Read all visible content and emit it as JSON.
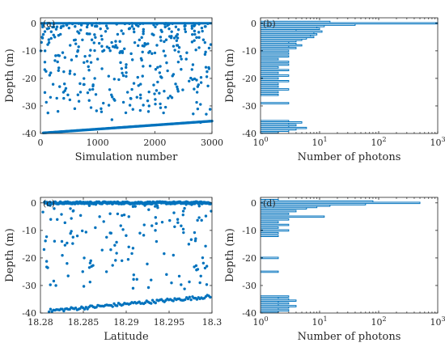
{
  "colors": {
    "series": "#0072BD",
    "axis": "#262626",
    "background": "#ffffff"
  },
  "chart_data": [
    {
      "id": "a",
      "panel_label": "(a)",
      "type": "scatter",
      "xlabel": "Simulation number",
      "ylabel": "Depth (m)",
      "xlim": [
        0,
        3000
      ],
      "ylim": [
        -40,
        2
      ],
      "xticks": [
        0,
        1000,
        2000,
        3000
      ],
      "xtick_labels": [
        "0",
        "1000",
        "2000",
        "3000"
      ],
      "yticks": [
        0,
        -10,
        -20,
        -30,
        -40
      ],
      "ytick_labels": [
        "0",
        "-10",
        "-20",
        "-30",
        "-40"
      ],
      "surface_band": {
        "y": 0,
        "x_start": 0,
        "x_end": 3000
      },
      "bottom_trend": {
        "x_start": 50,
        "y_start": -39.8,
        "x_end": 3000,
        "y_end": -35.5,
        "n_points": 150
      },
      "points": [
        [
          120,
          -2
        ],
        [
          250,
          -5
        ],
        [
          400,
          -1
        ],
        [
          520,
          -8
        ],
        [
          650,
          -3
        ],
        [
          780,
          -12
        ],
        [
          900,
          -6
        ],
        [
          1050,
          -2
        ],
        [
          1200,
          -9
        ],
        [
          1350,
          -4
        ],
        [
          1500,
          -15
        ],
        [
          1650,
          -7
        ],
        [
          1800,
          -3
        ],
        [
          1950,
          -11
        ],
        [
          2100,
          -5
        ],
        [
          2250,
          -2
        ],
        [
          2400,
          -8
        ],
        [
          2550,
          -13
        ],
        [
          2700,
          -4
        ],
        [
          2850,
          -6
        ],
        [
          180,
          -18
        ],
        [
          420,
          -22
        ],
        [
          700,
          -25
        ],
        [
          950,
          -20
        ],
        [
          1300,
          -28
        ],
        [
          1600,
          -24
        ],
        [
          1900,
          -30
        ],
        [
          2300,
          -27
        ],
        [
          2600,
          -21
        ],
        [
          2900,
          -33
        ],
        [
          300,
          -14
        ],
        [
          850,
          -17
        ],
        [
          1450,
          -19
        ],
        [
          2050,
          -16
        ],
        [
          2750,
          -23
        ],
        [
          600,
          -31
        ],
        [
          1100,
          -29
        ],
        [
          1750,
          -26
        ],
        [
          2450,
          -12
        ],
        [
          2950,
          -9
        ],
        [
          80,
          -10
        ],
        [
          350,
          -4
        ],
        [
          1000,
          -13
        ],
        [
          1550,
          -2
        ],
        [
          2200,
          -6
        ],
        [
          2650,
          -1
        ],
        [
          480,
          -26
        ],
        [
          1250,
          -35
        ],
        [
          2800,
          -36
        ],
        [
          150,
          -7
        ]
      ]
    },
    {
      "id": "b",
      "panel_label": "(b)",
      "type": "histogram",
      "orientation": "horizontal",
      "xlabel": "Number of photons",
      "ylabel": "Depth (m)",
      "x_scale": "log",
      "xlim": [
        1,
        1000
      ],
      "ylim": [
        -40,
        2
      ],
      "xticks": [
        1,
        10,
        100,
        1000
      ],
      "xtick_labels": [
        "10^0",
        "10^1",
        "10^2",
        "10^3"
      ],
      "yticks": [
        0,
        -10,
        -20,
        -30,
        -40
      ],
      "ytick_labels": [
        "0",
        "-10",
        "-20",
        "-30",
        "-40"
      ],
      "depths": [
        0.5,
        0,
        -0.5,
        -1,
        -1.5,
        -2,
        -2.5,
        -3,
        -3.5,
        -4,
        -4.5,
        -5,
        -5.5,
        -6,
        -6.5,
        -7,
        -7.5,
        -8,
        -8.5,
        -9,
        -10,
        -11,
        -12,
        -13,
        -14,
        -15,
        -16,
        -17,
        -18,
        -19,
        -20,
        -21,
        -22,
        -23,
        -24,
        -25,
        -26,
        -29,
        -35.5,
        -36,
        -36.5,
        -37,
        -37.5,
        -38,
        -38.5,
        -39,
        -39.5
      ],
      "counts": [
        15,
        1000,
        40,
        12,
        9,
        10,
        4,
        11,
        8,
        9,
        7,
        8,
        6,
        5,
        4,
        3,
        4,
        5,
        3,
        4,
        3,
        3,
        3,
        2,
        3,
        3,
        2,
        3,
        2,
        3,
        2,
        3,
        2,
        2,
        3,
        2,
        2,
        3,
        3,
        5,
        3,
        4,
        3,
        6,
        4,
        3,
        2
      ]
    },
    {
      "id": "c",
      "panel_label": "(c)",
      "type": "scatter",
      "xlabel": "Latitude",
      "ylabel": "Depth (m)",
      "xlim": [
        18.28,
        18.3
      ],
      "ylim": [
        -40,
        2
      ],
      "xticks": [
        18.28,
        18.285,
        18.29,
        18.295,
        18.3
      ],
      "xtick_labels": [
        "18.28",
        "18.285",
        "18.29",
        "18.295",
        "18.3"
      ],
      "yticks": [
        0,
        -10,
        -20,
        -30,
        -40
      ],
      "ytick_labels": [
        "0",
        "-10",
        "-20",
        "-30",
        "-40"
      ],
      "surface_band": {
        "y": 0,
        "x_start": 18.2805,
        "x_end": 18.2998,
        "n_points": 160,
        "jitter": 0.6
      },
      "bottom_trend": {
        "x_start": 18.281,
        "y_start": -39.2,
        "x_end": 18.2998,
        "y_end": -34.0,
        "n_points": 110,
        "jitter": 1.2
      },
      "points": [
        [
          18.2812,
          -6
        ],
        [
          18.2825,
          -14
        ],
        [
          18.2838,
          -3
        ],
        [
          18.2851,
          -20
        ],
        [
          18.2864,
          -9
        ],
        [
          18.2877,
          -25
        ],
        [
          18.289,
          -4
        ],
        [
          18.2903,
          -16
        ],
        [
          18.2916,
          -11
        ],
        [
          18.2929,
          -28
        ],
        [
          18.2942,
          -7
        ],
        [
          18.2955,
          -19
        ],
        [
          18.2968,
          -2
        ],
        [
          18.2981,
          -13
        ],
        [
          18.2994,
          -23
        ],
        [
          18.2818,
          -30
        ],
        [
          18.2843,
          -12
        ],
        [
          18.2869,
          -5
        ],
        [
          18.2895,
          -21
        ],
        [
          18.2921,
          -8
        ],
        [
          18.2947,
          -26
        ],
        [
          18.2973,
          -15
        ],
        [
          18.2999,
          -3
        ],
        [
          18.2831,
          -22
        ],
        [
          18.2882,
          -17
        ],
        [
          18.2934,
          -10
        ],
        [
          18.2986,
          -29
        ],
        [
          18.2857,
          -1
        ],
        [
          18.2908,
          -31
        ],
        [
          18.296,
          -6
        ]
      ]
    },
    {
      "id": "d",
      "panel_label": "(d)",
      "type": "histogram",
      "orientation": "horizontal",
      "xlabel": "Number of photons",
      "ylabel": "Depth (m)",
      "x_scale": "log",
      "xlim": [
        1,
        1000
      ],
      "ylim": [
        -40,
        2
      ],
      "xticks": [
        1,
        10,
        100,
        1000
      ],
      "xtick_labels": [
        "10^0",
        "10^1",
        "10^2",
        "10^3"
      ],
      "yticks": [
        0,
        -10,
        -20,
        -30,
        -40
      ],
      "ytick_labels": [
        "0",
        "-10",
        "-20",
        "-30",
        "-40"
      ],
      "depths": [
        1,
        0.5,
        0,
        -0.5,
        -1,
        -1.5,
        -2,
        -3,
        -4,
        -5,
        -6,
        -7,
        -8,
        -9,
        -10,
        -11,
        -12,
        -20,
        -25,
        -34,
        -34.5,
        -35,
        -35.5,
        -36,
        -36.5,
        -37,
        -37.5,
        -38,
        -38.5,
        -39,
        -39.5
      ],
      "counts": [
        2,
        80,
        500,
        60,
        15,
        9,
        6,
        4,
        3,
        12,
        3,
        2,
        3,
        2,
        3,
        2,
        2,
        2,
        2,
        3,
        2,
        3,
        4,
        2,
        3,
        2,
        4,
        3,
        2,
        3,
        2
      ]
    }
  ]
}
